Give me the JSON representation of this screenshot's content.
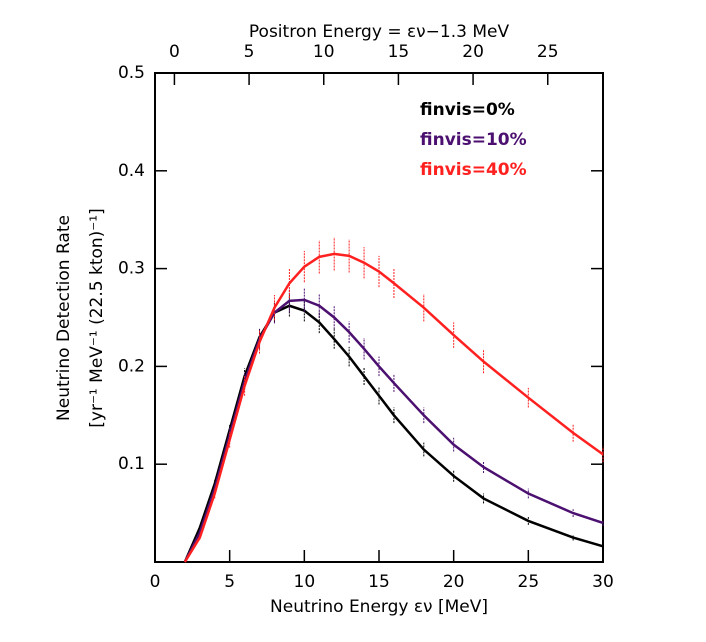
{
  "chart_data": {
    "type": "line",
    "title_top_axis": "Positron Energy = εν−1.3 MeV",
    "xlabel": "Neutrino Energy εν [MeV]",
    "ylabel": [
      "Neutrino Detection Rate",
      "[yr⁻¹ MeV⁻¹ (22.5 kton)⁻¹]"
    ],
    "x": [
      2,
      3,
      4,
      5,
      6,
      7,
      8,
      9,
      10,
      11,
      12,
      13,
      14,
      15,
      16,
      18,
      20,
      22,
      25,
      28,
      30
    ],
    "series": [
      {
        "name": "finvis=0%",
        "color": "#000000",
        "values": [
          0,
          0.035,
          0.08,
          0.135,
          0.19,
          0.23,
          0.255,
          0.262,
          0.257,
          0.245,
          0.228,
          0.21,
          0.19,
          0.17,
          0.15,
          0.115,
          0.088,
          0.065,
          0.042,
          0.025,
          0.016
        ],
        "errors": [
          0,
          0.002,
          0.004,
          0.006,
          0.008,
          0.009,
          0.01,
          0.011,
          0.011,
          0.011,
          0.01,
          0.01,
          0.009,
          0.009,
          0.008,
          0.007,
          0.006,
          0.005,
          0.004,
          0.003,
          0.003
        ]
      },
      {
        "name": "finvis=10%",
        "color": "#4b1070",
        "values": [
          0,
          0.03,
          0.075,
          0.13,
          0.185,
          0.228,
          0.255,
          0.267,
          0.268,
          0.262,
          0.25,
          0.235,
          0.218,
          0.2,
          0.183,
          0.15,
          0.12,
          0.097,
          0.07,
          0.05,
          0.04
        ],
        "errors": [
          0,
          0.002,
          0.004,
          0.007,
          0.009,
          0.01,
          0.011,
          0.012,
          0.012,
          0.012,
          0.012,
          0.011,
          0.011,
          0.01,
          0.009,
          0.008,
          0.007,
          0.006,
          0.005,
          0.004,
          0.003
        ]
      },
      {
        "name": "finvis=40%",
        "color": "#ff2020",
        "values": [
          0,
          0.025,
          0.07,
          0.125,
          0.18,
          0.225,
          0.26,
          0.285,
          0.302,
          0.312,
          0.315,
          0.313,
          0.306,
          0.297,
          0.285,
          0.26,
          0.232,
          0.205,
          0.168,
          0.132,
          0.11
        ],
        "errors": [
          0,
          0.002,
          0.005,
          0.008,
          0.01,
          0.012,
          0.013,
          0.015,
          0.016,
          0.017,
          0.017,
          0.017,
          0.016,
          0.016,
          0.015,
          0.014,
          0.013,
          0.012,
          0.01,
          0.009,
          0.008
        ]
      }
    ],
    "xlim": [
      0,
      30
    ],
    "xticks": [
      0,
      5,
      10,
      15,
      20,
      25,
      30
    ],
    "x2lim": [
      -1.3,
      28.7
    ],
    "x2ticks": [
      0,
      5,
      10,
      15,
      20,
      25
    ],
    "ylim": [
      0,
      0.5
    ],
    "yticks": [
      0.1,
      0.2,
      0.3,
      0.4,
      0.5
    ]
  }
}
